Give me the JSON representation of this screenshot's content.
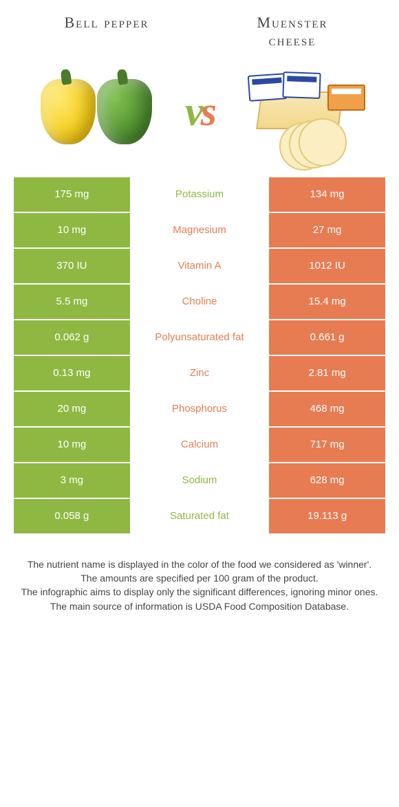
{
  "colors": {
    "left_bar": "#8fb843",
    "right_bar": "#e77c52",
    "left_text": "#8fb843",
    "right_text": "#e77c52",
    "vs_left": "#8fb843",
    "vs_right": "#e77c52"
  },
  "titles": {
    "left": "Bell pepper",
    "right_line1": "Muenster",
    "right_line2": "cheese"
  },
  "vs_label": "vs",
  "rows": [
    {
      "left": "175 mg",
      "name": "Potassium",
      "right": "134 mg",
      "winner": "left"
    },
    {
      "left": "10 mg",
      "name": "Magnesium",
      "right": "27 mg",
      "winner": "right"
    },
    {
      "left": "370 IU",
      "name": "Vitamin A",
      "right": "1012 IU",
      "winner": "right"
    },
    {
      "left": "5.5 mg",
      "name": "Choline",
      "right": "15.4 mg",
      "winner": "right"
    },
    {
      "left": "0.062 g",
      "name": "Polyunsaturated fat",
      "right": "0.661 g",
      "winner": "right"
    },
    {
      "left": "0.13 mg",
      "name": "Zinc",
      "right": "2.81 mg",
      "winner": "right"
    },
    {
      "left": "20 mg",
      "name": "Phosphorus",
      "right": "468 mg",
      "winner": "right"
    },
    {
      "left": "10 mg",
      "name": "Calcium",
      "right": "717 mg",
      "winner": "right"
    },
    {
      "left": "3 mg",
      "name": "Sodium",
      "right": "628 mg",
      "winner": "left"
    },
    {
      "left": "0.058 g",
      "name": "Saturated fat",
      "right": "19.113 g",
      "winner": "left"
    }
  ],
  "footer": {
    "line1": "The nutrient name is displayed in the color of the food we considered as 'winner'.",
    "line2": "The amounts are specified per 100 gram of the product.",
    "line3": "The infographic aims to display only the significant differences, ignoring minor ones.",
    "line4": "The main source of information is USDA Food Composition Database."
  }
}
